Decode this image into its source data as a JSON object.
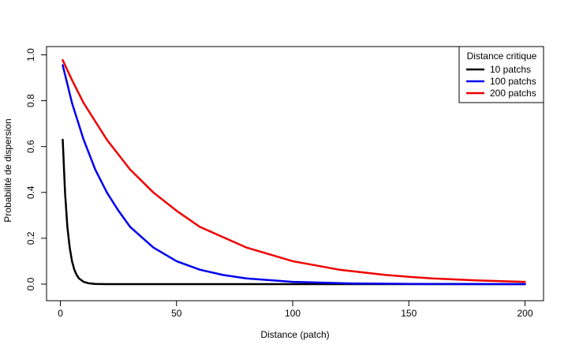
{
  "chart_data": {
    "type": "line",
    "xlabel": "Distance (patch)",
    "ylabel": "Probabilité de dispersion",
    "xlim": [
      1,
      200
    ],
    "ylim": [
      0,
      1
    ],
    "x_ticks": [
      "0",
      "50",
      "100",
      "150",
      "200"
    ],
    "y_ticks": [
      "0.0",
      "0.2",
      "0.4",
      "0.6",
      "0.8",
      "1.0"
    ],
    "grid": false,
    "legend": {
      "title": "Distance critique",
      "position": "top-right"
    },
    "series": [
      {
        "name": "10 patchs",
        "color": "#000000",
        "x": [
          1,
          2,
          3,
          4,
          5,
          6,
          7,
          8,
          10,
          12,
          15,
          20,
          30,
          50,
          100,
          200
        ],
        "y": [
          0.63,
          0.4,
          0.25,
          0.16,
          0.1,
          0.063,
          0.04,
          0.025,
          0.01,
          0.004,
          0.001,
          0.0001,
          0,
          0,
          0,
          0
        ]
      },
      {
        "name": "100 patchs",
        "color": "#0000ee",
        "x": [
          1,
          5,
          10,
          15,
          20,
          25,
          30,
          40,
          50,
          60,
          70,
          80,
          100,
          125,
          150,
          175,
          200
        ],
        "y": [
          0.955,
          0.79,
          0.63,
          0.5,
          0.4,
          0.32,
          0.25,
          0.16,
          0.1,
          0.063,
          0.04,
          0.025,
          0.01,
          0.003,
          0.001,
          0.0003,
          0.0001
        ]
      },
      {
        "name": "200 patchs",
        "color": "#ee0000",
        "x": [
          1,
          5,
          10,
          20,
          30,
          40,
          50,
          60,
          80,
          100,
          120,
          140,
          150,
          160,
          180,
          200
        ],
        "y": [
          0.977,
          0.89,
          0.79,
          0.63,
          0.5,
          0.4,
          0.32,
          0.25,
          0.16,
          0.1,
          0.063,
          0.04,
          0.032,
          0.025,
          0.016,
          0.01
        ]
      }
    ]
  }
}
